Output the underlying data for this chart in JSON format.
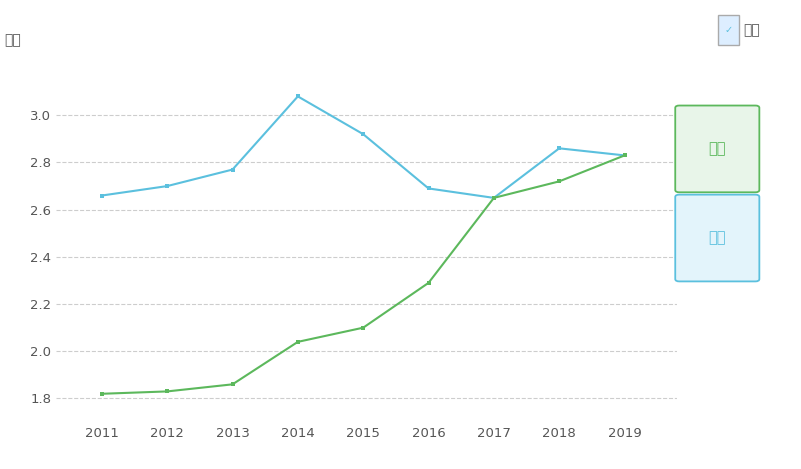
{
  "years": [
    2011,
    2012,
    2013,
    2014,
    2015,
    2016,
    2017,
    2018,
    2019
  ],
  "india_gdp": [
    1.82,
    1.83,
    1.86,
    2.04,
    2.1,
    2.29,
    2.65,
    2.72,
    2.83
  ],
  "uk_gdp": [
    2.66,
    2.7,
    2.77,
    3.08,
    2.92,
    2.69,
    2.65,
    2.86,
    2.83
  ],
  "india_color": "#5cb85c",
  "uk_color": "#5bc0de",
  "india_label": "印度",
  "uk_label": "英国",
  "ylabel": "万亿",
  "background_color": "#ffffff",
  "grid_color": "#c8c8c8",
  "ylim": [
    1.7,
    3.25
  ],
  "yticks": [
    1.8,
    2.0,
    2.2,
    2.4,
    2.6,
    2.8,
    3.0
  ],
  "legend_label": "标签",
  "india_box_color": "#e8f5e9",
  "uk_box_color": "#e3f4fb"
}
